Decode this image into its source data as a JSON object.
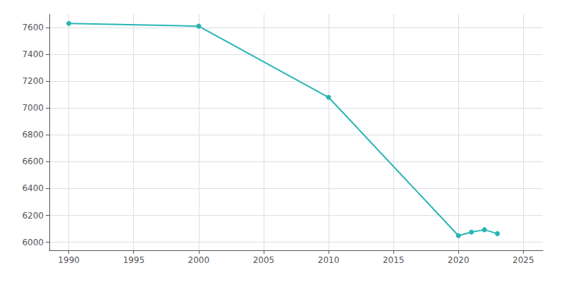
{
  "chart_data": {
    "type": "line",
    "x": [
      1990,
      2000,
      2010,
      2020,
      2021,
      2022,
      2023
    ],
    "values": [
      7630,
      7610,
      7080,
      6049,
      6075,
      6093,
      6064
    ],
    "color": "#2ab5b5",
    "marker": "circle",
    "xlim": [
      1988.5,
      2026.5
    ],
    "ylim": [
      5940,
      7700
    ],
    "xticks": [
      1990,
      1995,
      2000,
      2005,
      2010,
      2015,
      2020,
      2025
    ],
    "yticks": [
      6000,
      6200,
      6400,
      6600,
      6800,
      7000,
      7200,
      7400,
      7600
    ],
    "grid": true
  }
}
